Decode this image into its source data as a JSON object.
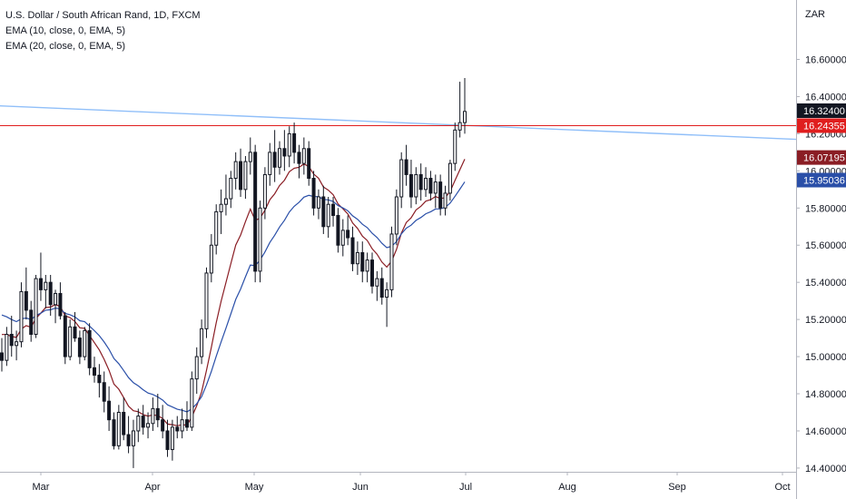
{
  "header": {
    "symbol_title": "U.S. Dollar / South African Rand, 1D, FXCM",
    "indicators": [
      "EMA (10, close, 0, EMA, 5)",
      "EMA (20, close, 0, EMA, 5)"
    ]
  },
  "chart_data": {
    "type": "candlestick",
    "currency_label": "ZAR",
    "x_ticks": [
      "Mar",
      "Apr",
      "May",
      "Jun",
      "Jul",
      "Aug",
      "Sep",
      "Oct"
    ],
    "y_ticks": [
      "16.60000",
      "16.40000",
      "16.20000",
      "16.00000",
      "15.80000",
      "15.60000",
      "15.40000",
      "15.20000",
      "15.00000",
      "14.80000",
      "14.60000",
      "14.40000"
    ],
    "ylim": [
      14.38,
      16.92
    ],
    "last_price": "16.32400",
    "horizontal_line": {
      "value": 16.24355,
      "label": "16.24355",
      "color": "#e01e1e"
    },
    "trend_line": {
      "start": 16.35,
      "end": 16.17,
      "color": "#90bff9"
    },
    "ema10": {
      "value": 16.07195,
      "label": "16.07195",
      "color": "#8a1d24"
    },
    "ema20": {
      "value": 15.95036,
      "label": "15.95036",
      "color": "#2a4fa8"
    },
    "candles": [
      [
        15.02,
        15.1,
        14.92,
        14.98
      ],
      [
        14.98,
        15.16,
        14.95,
        15.12
      ],
      [
        15.12,
        15.22,
        15.0,
        15.06
      ],
      [
        15.06,
        15.14,
        14.98,
        15.08
      ],
      [
        15.08,
        15.4,
        15.05,
        15.35
      ],
      [
        15.35,
        15.48,
        15.2,
        15.25
      ],
      [
        15.25,
        15.3,
        15.08,
        15.12
      ],
      [
        15.12,
        15.44,
        15.1,
        15.42
      ],
      [
        15.42,
        15.56,
        15.3,
        15.36
      ],
      [
        15.36,
        15.44,
        15.26,
        15.4
      ],
      [
        15.4,
        15.44,
        15.22,
        15.28
      ],
      [
        15.28,
        15.36,
        15.18,
        15.34
      ],
      [
        15.34,
        15.4,
        15.2,
        15.22
      ],
      [
        15.22,
        15.24,
        14.96,
        15.0
      ],
      [
        15.0,
        15.2,
        14.98,
        15.16
      ],
      [
        15.16,
        15.24,
        15.08,
        15.1
      ],
      [
        15.1,
        15.14,
        14.96,
        15.0
      ],
      [
        15.0,
        15.16,
        14.98,
        15.14
      ],
      [
        15.14,
        15.18,
        14.9,
        14.94
      ],
      [
        14.94,
        15.0,
        14.86,
        14.9
      ],
      [
        14.9,
        14.96,
        14.78,
        14.86
      ],
      [
        14.86,
        14.92,
        14.7,
        14.76
      ],
      [
        14.76,
        14.84,
        14.6,
        14.66
      ],
      [
        14.66,
        14.7,
        14.5,
        14.52
      ],
      [
        14.52,
        14.74,
        14.5,
        14.7
      ],
      [
        14.7,
        14.78,
        14.55,
        14.58
      ],
      [
        14.58,
        14.68,
        14.48,
        14.52
      ],
      [
        14.52,
        14.66,
        14.4,
        14.6
      ],
      [
        14.6,
        14.72,
        14.54,
        14.68
      ],
      [
        14.68,
        14.74,
        14.58,
        14.62
      ],
      [
        14.62,
        14.7,
        14.56,
        14.64
      ],
      [
        14.64,
        14.78,
        14.6,
        14.72
      ],
      [
        14.72,
        14.8,
        14.62,
        14.66
      ],
      [
        14.66,
        14.74,
        14.56,
        14.6
      ],
      [
        14.6,
        14.66,
        14.46,
        14.5
      ],
      [
        14.5,
        14.66,
        14.44,
        14.62
      ],
      [
        14.62,
        14.68,
        14.56,
        14.6
      ],
      [
        14.6,
        14.72,
        14.56,
        14.66
      ],
      [
        14.66,
        14.76,
        14.6,
        14.62
      ],
      [
        14.62,
        14.92,
        14.6,
        14.88
      ],
      [
        14.88,
        15.05,
        14.8,
        15.0
      ],
      [
        15.0,
        15.2,
        14.96,
        15.15
      ],
      [
        15.15,
        15.48,
        15.1,
        15.45
      ],
      [
        15.45,
        15.66,
        15.4,
        15.6
      ],
      [
        15.6,
        15.82,
        15.55,
        15.78
      ],
      [
        15.78,
        15.9,
        15.66,
        15.82
      ],
      [
        15.82,
        15.98,
        15.76,
        15.85
      ],
      [
        15.85,
        16.0,
        15.8,
        15.96
      ],
      [
        15.96,
        16.1,
        15.9,
        16.05
      ],
      [
        16.05,
        16.12,
        15.86,
        15.9
      ],
      [
        15.9,
        16.08,
        15.85,
        16.05
      ],
      [
        16.05,
        16.18,
        15.98,
        16.1
      ],
      [
        16.1,
        16.14,
        15.4,
        15.46
      ],
      [
        15.46,
        15.84,
        15.4,
        15.8
      ],
      [
        15.8,
        16.02,
        15.74,
        15.98
      ],
      [
        15.98,
        16.15,
        15.92,
        16.1
      ],
      [
        16.1,
        16.22,
        15.94,
        16.02
      ],
      [
        16.02,
        16.16,
        15.98,
        16.12
      ],
      [
        16.12,
        16.22,
        16.0,
        16.08
      ],
      [
        16.08,
        16.24,
        16.02,
        16.2
      ],
      [
        16.2,
        16.26,
        16.04,
        16.1
      ],
      [
        16.1,
        16.14,
        15.96,
        16.04
      ],
      [
        16.04,
        16.18,
        15.98,
        16.12
      ],
      [
        16.12,
        16.16,
        15.92,
        15.96
      ],
      [
        15.96,
        16.0,
        15.76,
        15.8
      ],
      [
        15.8,
        15.9,
        15.74,
        15.86
      ],
      [
        15.86,
        15.92,
        15.66,
        15.7
      ],
      [
        15.7,
        15.86,
        15.64,
        15.82
      ],
      [
        15.82,
        15.86,
        15.7,
        15.76
      ],
      [
        15.76,
        15.8,
        15.56,
        15.6
      ],
      [
        15.6,
        15.74,
        15.54,
        15.68
      ],
      [
        15.68,
        15.76,
        15.6,
        15.64
      ],
      [
        15.64,
        15.7,
        15.46,
        15.5
      ],
      [
        15.5,
        15.62,
        15.44,
        15.56
      ],
      [
        15.56,
        15.62,
        15.4,
        15.46
      ],
      [
        15.46,
        15.56,
        15.4,
        15.52
      ],
      [
        15.52,
        15.56,
        15.34,
        15.38
      ],
      [
        15.38,
        15.46,
        15.3,
        15.42
      ],
      [
        15.42,
        15.48,
        15.28,
        15.32
      ],
      [
        15.32,
        15.4,
        15.16,
        15.36
      ],
      [
        15.36,
        15.7,
        15.32,
        15.66
      ],
      [
        15.66,
        15.9,
        15.6,
        15.86
      ],
      [
        15.86,
        16.1,
        15.8,
        16.06
      ],
      [
        16.06,
        16.14,
        15.92,
        15.98
      ],
      [
        15.98,
        16.06,
        15.8,
        15.86
      ],
      [
        15.86,
        16.02,
        15.82,
        15.98
      ],
      [
        15.98,
        16.04,
        15.84,
        15.9
      ],
      [
        15.9,
        16.02,
        15.86,
        15.96
      ],
      [
        15.96,
        16.0,
        15.84,
        15.88
      ],
      [
        15.88,
        15.98,
        15.8,
        15.94
      ],
      [
        15.94,
        15.98,
        15.76,
        15.8
      ],
      [
        15.8,
        15.92,
        15.76,
        15.88
      ],
      [
        15.88,
        16.06,
        15.84,
        16.04
      ],
      [
        16.04,
        16.26,
        16.0,
        16.22
      ],
      [
        16.22,
        16.48,
        16.18,
        16.26
      ],
      [
        16.26,
        16.5,
        16.2,
        16.32
      ]
    ]
  }
}
